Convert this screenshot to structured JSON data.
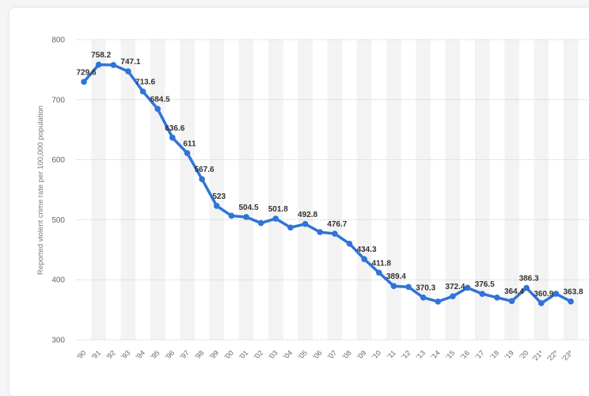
{
  "chart_data": {
    "type": "line",
    "title": "",
    "xlabel": "",
    "ylabel": "Reported violent crime rate per 100,000 population",
    "ylim": [
      300,
      800
    ],
    "yticks": [
      800,
      700,
      600,
      500,
      400,
      300
    ],
    "grid": true,
    "line_color": "#2f74d8",
    "band_color": "#f3f3f3",
    "categories": [
      "'90",
      "'91",
      "'92",
      "'93",
      "'94",
      "'95",
      "'96",
      "'97",
      "'98",
      "'99",
      "'00",
      "'01",
      "'02",
      "'03",
      "'04",
      "'05",
      "'06",
      "'07",
      "'08",
      "'09",
      "'10",
      "'11",
      "'12",
      "'13",
      "'14",
      "'15",
      "'16",
      "'17",
      "'18",
      "'19",
      "'20",
      "'21*",
      "'22*",
      "'23*"
    ],
    "values": [
      729.6,
      758.2,
      757.7,
      747.1,
      713.6,
      684.5,
      636.6,
      611,
      567.6,
      523,
      506.5,
      504.5,
      494.4,
      501.8,
      487,
      492.8,
      479.3,
      476.7,
      460,
      434.3,
      411.8,
      389.4,
      388,
      370.3,
      363.6,
      372.4,
      386.6,
      376.5,
      370.3,
      364.4,
      386.3,
      360.9,
      376.6,
      363.8
    ],
    "data_labels": [
      "729.6",
      "758.2",
      "",
      "747.1",
      "713.6",
      "684.5",
      "636.6",
      "611",
      "567.6",
      "523",
      "",
      "504.5",
      "",
      "501.8",
      "",
      "492.8",
      "",
      "476.7",
      "",
      "434.3",
      "411.8",
      "389.4",
      "",
      "370.3",
      "",
      "372.4",
      "",
      "376.5",
      "",
      "364.4",
      "386.3",
      "360.9",
      "",
      "363.8"
    ]
  }
}
